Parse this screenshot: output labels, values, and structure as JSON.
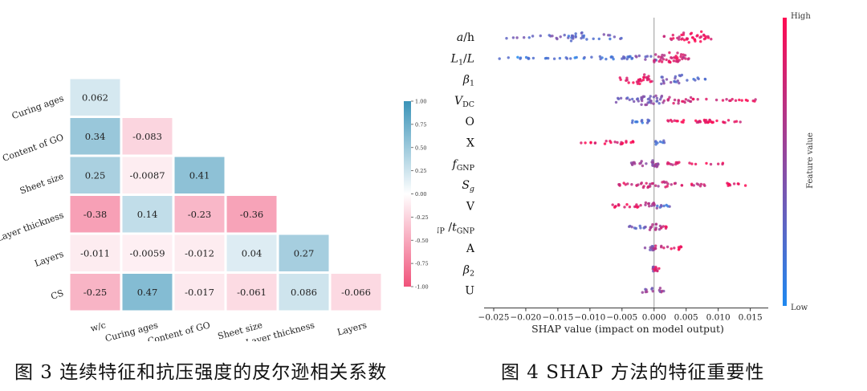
{
  "figures": {
    "fig3_caption": "图 3 连续特征和抗压强度的皮尔逊相关系数",
    "fig4_caption": "图 4 SHAP 方法的特征重要性"
  },
  "chart_data": [
    {
      "type": "heatmap",
      "title": "",
      "row_labels": [
        "Curing ages",
        "Content of GO",
        "Sheet size",
        "Layer thickness",
        "Layers",
        "CS"
      ],
      "col_labels": [
        "w/c",
        "Curing ages",
        "Content of GO",
        "Sheet size",
        "Layer thickness",
        "Layers"
      ],
      "cells": [
        [
          0.062
        ],
        [
          0.34,
          -0.083
        ],
        [
          0.25,
          -0.0087,
          0.41
        ],
        [
          -0.38,
          0.14,
          -0.23,
          -0.36
        ],
        [
          -0.011,
          -0.0059,
          -0.012,
          0.04,
          0.27
        ],
        [
          -0.25,
          0.47,
          -0.017,
          -0.061,
          0.086,
          -0.066
        ]
      ],
      "cell_labels": [
        [
          "0.062"
        ],
        [
          "0.34",
          "-0.083"
        ],
        [
          "0.25",
          "-0.0087",
          "0.41"
        ],
        [
          "-0.38",
          "0.14",
          "-0.23",
          "-0.36"
        ],
        [
          "-0.011",
          "-0.0059",
          "-0.012",
          "0.04",
          "0.27"
        ],
        [
          "-0.25",
          "0.47",
          "-0.017",
          "-0.061",
          "0.086",
          "-0.066"
        ]
      ],
      "colorbar": {
        "range": [
          -1.0,
          1.0
        ],
        "ticks": [
          "1.00",
          "0.75",
          "0.50",
          "0.25",
          "0.00",
          "-0.25",
          "-0.50",
          "-0.75",
          "-1.00"
        ],
        "tick_values": [
          1.0,
          0.75,
          0.5,
          0.25,
          0.0,
          -0.25,
          -0.5,
          -0.75,
          -1.0
        ],
        "low_color": "#f0527a",
        "mid_color": "#ffffff",
        "high_color": "#3a93b8"
      }
    },
    {
      "type": "scatter",
      "title": "",
      "xlabel": "SHAP value (impact on model output)",
      "xlim": [
        -0.0265,
        0.0178
      ],
      "xticks": [
        -0.025,
        -0.02,
        -0.015,
        -0.01,
        -0.005,
        0.0,
        0.005,
        0.01,
        0.015
      ],
      "xtick_labels": [
        "−0.025",
        "−0.020",
        "−0.015",
        "−0.010",
        "−0.005",
        "0.000",
        "0.005",
        "0.010",
        "0.015"
      ],
      "colorbar": {
        "label": "Feature value",
        "high_label": "High",
        "low_label": "Low",
        "low_color": "#1e88f0",
        "high_color": "#ff0a52"
      },
      "features": [
        {
          "label": [
            {
              "t": "a",
              "s": "i"
            },
            {
              "t": "/h",
              "s": "n"
            }
          ],
          "bands": [
            [
              -0.023,
              -0.018,
              2,
              0.35,
              6
            ],
            [
              -0.018,
              -0.013,
              3,
              0.3,
              9
            ],
            [
              -0.0135,
              -0.011,
              6,
              0.25,
              14
            ],
            [
              -0.011,
              -0.0045,
              3,
              0.3,
              12
            ],
            [
              0.0025,
              0.0045,
              4,
              0.85,
              10
            ],
            [
              0.0045,
              0.0075,
              7,
              0.92,
              20
            ],
            [
              0.0075,
              0.0098,
              3,
              0.9,
              8
            ],
            [
              0.0015,
              0.002,
              1,
              0.8,
              2
            ]
          ]
        },
        {
          "label": [
            {
              "t": "L",
              "s": "i"
            },
            {
              "t": "1",
              "s": "sub"
            },
            {
              "t": "/",
              "s": "n"
            },
            {
              "t": "L",
              "s": "i"
            }
          ],
          "bands": [
            [
              -0.0255,
              -0.012,
              1,
              0.15,
              20
            ],
            [
              -0.012,
              -0.003,
              2,
              0.2,
              22
            ],
            [
              -0.003,
              0.0005,
              3,
              0.4,
              10
            ],
            [
              0.0,
              0.002,
              5,
              0.8,
              14
            ],
            [
              0.002,
              0.004,
              7,
              0.85,
              18
            ],
            [
              0.004,
              0.0055,
              5,
              0.8,
              10
            ]
          ]
        },
        {
          "label": [
            {
              "t": "β",
              "s": "i"
            },
            {
              "t": "1",
              "s": "sub"
            }
          ],
          "bands": [
            [
              -0.0055,
              -0.004,
              3,
              0.9,
              5
            ],
            [
              -0.004,
              -0.0015,
              6,
              0.92,
              16
            ],
            [
              -0.0015,
              0.0,
              4,
              0.85,
              8
            ],
            [
              0.001,
              0.0045,
              6,
              0.35,
              18
            ],
            [
              0.0045,
              0.008,
              2,
              0.3,
              7
            ]
          ]
        },
        {
          "label": [
            {
              "t": "V",
              "s": "i"
            },
            {
              "t": "DC",
              "s": "sub"
            }
          ],
          "bands": [
            [
              -0.006,
              -0.002,
              3,
              0.35,
              12
            ],
            [
              -0.002,
              0.0015,
              6,
              0.4,
              28
            ],
            [
              0.0015,
              0.006,
              4,
              0.8,
              18
            ],
            [
              0.006,
              0.016,
              1.5,
              0.88,
              18
            ]
          ]
        },
        {
          "label": [
            {
              "t": "O",
              "s": "n"
            }
          ],
          "bands": [
            [
              -0.0035,
              -0.0005,
              2,
              0.2,
              12
            ],
            [
              0.002,
              0.009,
              2,
              0.92,
              28
            ],
            [
              0.009,
              0.014,
              1.5,
              0.9,
              10
            ]
          ]
        },
        {
          "label": [
            {
              "t": "X",
              "s": "n"
            }
          ],
          "bands": [
            [
              -0.012,
              -0.008,
              1,
              0.9,
              6
            ],
            [
              -0.008,
              -0.0025,
              2,
              0.92,
              16
            ],
            [
              0.0,
              0.002,
              3,
              0.2,
              8
            ]
          ]
        },
        {
          "label": [
            {
              "t": "f",
              "s": "i"
            },
            {
              "t": "GNP",
              "s": "sub"
            }
          ],
          "bands": [
            [
              -0.0045,
              -0.002,
              1.5,
              0.6,
              8
            ],
            [
              -0.002,
              0.001,
              4,
              0.55,
              18
            ],
            [
              0.001,
              0.004,
              2,
              0.8,
              10
            ],
            [
              0.004,
              0.011,
              1,
              0.9,
              8
            ]
          ]
        },
        {
          "label": [
            {
              "t": "S",
              "s": "i"
            },
            {
              "t": "g",
              "s": "isub"
            }
          ],
          "bands": [
            [
              -0.0055,
              -0.002,
              2,
              0.8,
              12
            ],
            [
              -0.002,
              0.002,
              4,
              0.7,
              18
            ],
            [
              0.002,
              0.008,
              2,
              0.8,
              16
            ],
            [
              0.011,
              0.0145,
              2,
              0.92,
              10
            ]
          ]
        },
        {
          "label": [
            {
              "t": "V",
              "s": "n"
            }
          ],
          "bands": [
            [
              -0.007,
              -0.002,
              2,
              0.9,
              16
            ],
            [
              -0.002,
              0.0005,
              4,
              0.6,
              12
            ],
            [
              0.0005,
              0.0025,
              2,
              0.25,
              8
            ]
          ]
        },
        {
          "label": [
            {
              "t": "D",
              "s": "n"
            },
            {
              "t": "GNP",
              "s": "sub"
            },
            {
              "t": " /",
              "s": "n"
            },
            {
              "t": "t",
              "s": "i"
            },
            {
              "t": "GNP",
              "s": "sub"
            }
          ],
          "bands": [
            [
              -0.004,
              -0.001,
              2,
              0.3,
              10
            ],
            [
              -0.001,
              0.001,
              5,
              0.6,
              12
            ],
            [
              0.001,
              0.002,
              2,
              0.85,
              6
            ]
          ]
        },
        {
          "label": [
            {
              "t": "A",
              "s": "n"
            }
          ],
          "bands": [
            [
              -0.0018,
              0.0,
              3,
              0.4,
              10
            ],
            [
              0.0,
              0.0022,
              3,
              0.7,
              8
            ],
            [
              0.0022,
              0.0045,
              2,
              0.92,
              8
            ]
          ]
        },
        {
          "label": [
            {
              "t": "β",
              "s": "i"
            },
            {
              "t": "2",
              "s": "sub"
            }
          ],
          "bands": [
            [
              -0.0008,
              0.0,
              3,
              0.5,
              6
            ],
            [
              0.0,
              0.0008,
              4,
              0.9,
              8
            ]
          ]
        },
        {
          "label": [
            {
              "t": "U",
              "s": "n"
            }
          ],
          "bands": [
            [
              -0.002,
              0.0,
              3,
              0.5,
              8
            ],
            [
              0.0,
              0.002,
              3,
              0.55,
              6
            ]
          ]
        }
      ]
    }
  ]
}
